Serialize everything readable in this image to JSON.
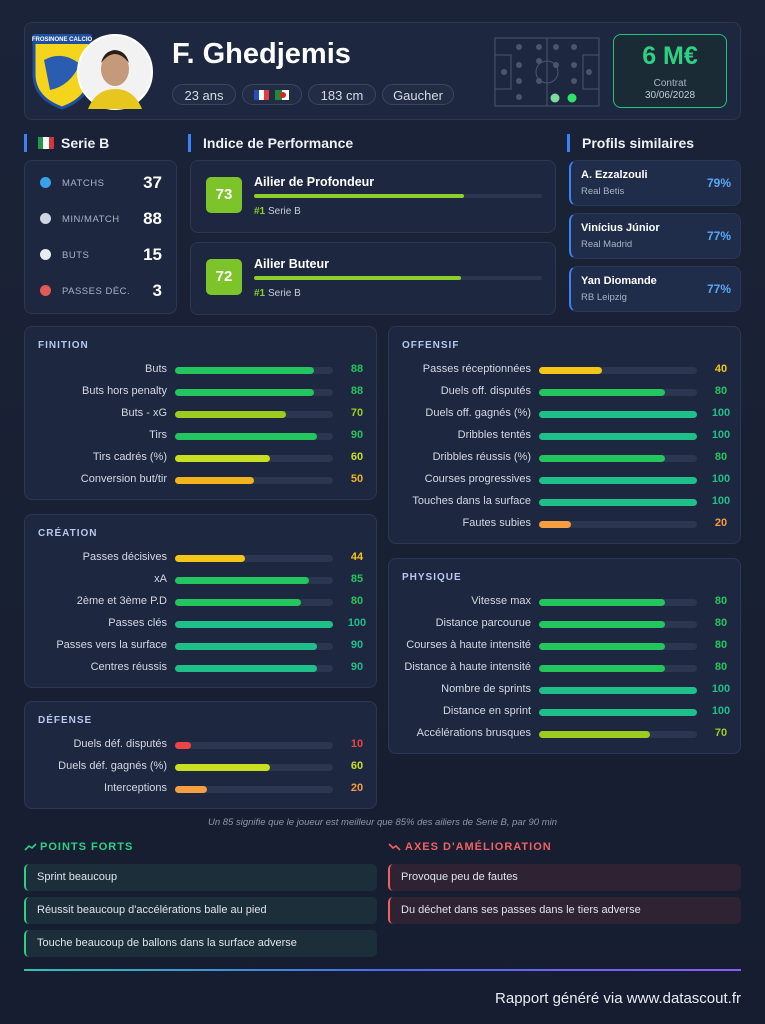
{
  "header": {
    "club": "FROSINONE CALCIO",
    "name": "F. Ghedjemis",
    "tags": [
      "23 ans",
      "183 cm",
      "Gaucher"
    ],
    "value": "6 M€",
    "contract_label": "Contrat",
    "contract_date": "30/06/2028"
  },
  "league": {
    "name": "Serie B",
    "stats": [
      {
        "label": "MATCHS",
        "value": 37
      },
      {
        "label": "MIN/MATCH",
        "value": 88
      },
      {
        "label": "BUTS",
        "value": 15
      },
      {
        "label": "PASSES DÉC.",
        "value": 3
      }
    ]
  },
  "performance": {
    "title": "Indice de Performance",
    "items": [
      {
        "score": 73,
        "role": "Ailier de Profondeur",
        "rank": "#1",
        "league": "Serie B"
      },
      {
        "score": 72,
        "role": "Ailier Buteur",
        "rank": "#1",
        "league": "Serie B"
      }
    ]
  },
  "similar": {
    "title": "Profils similaires",
    "items": [
      {
        "name": "A. Ezzalzouli",
        "club": "Real Betis",
        "score": "79%"
      },
      {
        "name": "Vinícius Júnior",
        "club": "Real Madrid",
        "score": "77%"
      },
      {
        "name": "Yan Diomande",
        "club": "RB Leipzig",
        "score": "77%"
      }
    ]
  },
  "sections": [
    {
      "title": "FINITION",
      "stats": [
        {
          "label": "Buts",
          "value": 88,
          "color": "#22c55e"
        },
        {
          "label": "Buts hors penalty",
          "value": 88,
          "color": "#22c55e"
        },
        {
          "label": "Buts - xG",
          "value": 70,
          "color": "#9ccc1e"
        },
        {
          "label": "Tirs",
          "value": 90,
          "color": "#22c55e"
        },
        {
          "label": "Tirs cadrés (%)",
          "value": 60,
          "color": "#c8e020"
        },
        {
          "label": "Conversion but/tir",
          "value": 50,
          "color": "#f2b31a"
        }
      ]
    },
    {
      "title": "CRÉATION",
      "stats": [
        {
          "label": "Passes décisives",
          "value": 44,
          "color": "#f5c518"
        },
        {
          "label": "xA",
          "value": 85,
          "color": "#22c55e"
        },
        {
          "label": "2ème et 3ème P.D",
          "value": 80,
          "color": "#22c55e"
        },
        {
          "label": "Passes clés",
          "value": 100,
          "color": "#1fbf8a"
        },
        {
          "label": "Passes vers la surface",
          "value": 90,
          "color": "#1fbf8a"
        },
        {
          "label": "Centres réussis",
          "value": 90,
          "color": "#1fbf8a"
        }
      ]
    },
    {
      "title": "DÉFENSE",
      "stats": [
        {
          "label": "Duels déf. disputés",
          "value": 10,
          "color": "#ef4444"
        },
        {
          "label": "Duels déf. gagnés (%)",
          "value": 60,
          "color": "#c8e020"
        },
        {
          "label": "Interceptions",
          "value": 20,
          "color": "#f59e42"
        }
      ]
    },
    {
      "title": "OFFENSIF",
      "stats": [
        {
          "label": "Passes réceptionnées",
          "value": 40,
          "color": "#f5c518"
        },
        {
          "label": "Duels off. disputés",
          "value": 80,
          "color": "#22c55e"
        },
        {
          "label": "Duels off. gagnés (%)",
          "value": 100,
          "color": "#1fbf8a"
        },
        {
          "label": "Dribbles tentés",
          "value": 100,
          "color": "#1fbf8a"
        },
        {
          "label": "Dribbles réussis (%)",
          "value": 80,
          "color": "#22c55e"
        },
        {
          "label": "Courses progressives",
          "value": 100,
          "color": "#1fbf8a"
        },
        {
          "label": "Touches dans la surface",
          "value": 100,
          "color": "#1fbf8a"
        },
        {
          "label": "Fautes subies",
          "value": 20,
          "color": "#f59e42"
        }
      ]
    },
    {
      "title": "PHYSIQUE",
      "stats": [
        {
          "label": "Vitesse max",
          "value": 80,
          "color": "#22c55e"
        },
        {
          "label": "Distance parcourue",
          "value": 80,
          "color": "#22c55e"
        },
        {
          "label": "Courses à haute intensité",
          "value": 80,
          "color": "#22c55e"
        },
        {
          "label": "Distance à haute intensité",
          "value": 80,
          "color": "#22c55e"
        },
        {
          "label": "Nombre de sprints",
          "value": 100,
          "color": "#1fbf8a"
        },
        {
          "label": "Distance en sprint",
          "value": 100,
          "color": "#1fbf8a"
        },
        {
          "label": "Accélérations brusques",
          "value": 70,
          "color": "#9ccc1e"
        }
      ]
    }
  ],
  "note": "Un 85 signifie que le joueur est meilleur que 85% des ailiers de Serie B, par 90 min",
  "strengths": {
    "title": "POINTS FORTS",
    "items": [
      "Sprint beaucoup",
      "Réussit beaucoup d'accélérations balle au pied",
      "Touche beaucoup de ballons dans la surface adverse"
    ]
  },
  "improvements": {
    "title": "AXES D'AMÉLIORATION",
    "items": [
      "Provoque peu de fautes",
      "Du déchet dans ses passes dans le tiers adverse"
    ]
  },
  "footer": "Rapport généré via www.datascout.fr"
}
